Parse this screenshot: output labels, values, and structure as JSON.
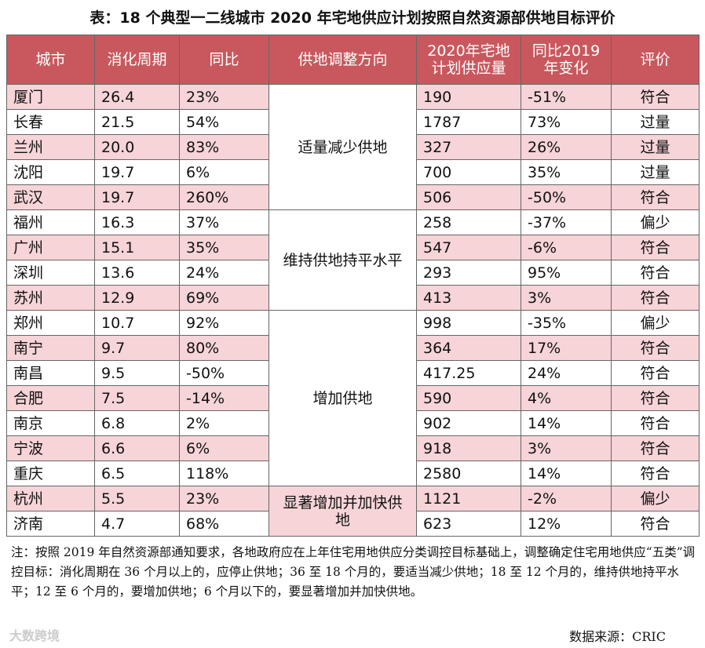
{
  "title": "表：18 个典型一二线城市 2020 年宅地供应计划按照自然资源部供地目标评价",
  "table": {
    "headers": [
      [
        "城市"
      ],
      [
        "消化周期"
      ],
      [
        "同比"
      ],
      [
        "供地调整方向"
      ],
      [
        "2020年宅地",
        "计划供应量"
      ],
      [
        "同比2019",
        "年变化"
      ],
      [
        "评价"
      ]
    ],
    "groups": [
      "适量减少供地",
      "维持供地持平水平",
      "增加供地",
      "显著增加并加快供地"
    ],
    "rows": [
      [
        "厦门",
        26.4,
        "23%",
        190,
        "-51%",
        "符合"
      ],
      [
        "长春",
        21.5,
        "54%",
        1787,
        "73%",
        "过量"
      ],
      [
        "兰州",
        "20.0",
        "83%",
        327,
        "26%",
        "过量"
      ],
      [
        "沈阳",
        19.7,
        "6%",
        700,
        "35%",
        "过量"
      ],
      [
        "武汉",
        19.7,
        "260%",
        506,
        "-50%",
        "符合"
      ],
      [
        "福州",
        16.3,
        "37%",
        258,
        "-37%",
        "偏少"
      ],
      [
        "广州",
        15.1,
        "35%",
        547,
        "-6%",
        "符合"
      ],
      [
        "深圳",
        13.6,
        "24%",
        293,
        "95%",
        "符合"
      ],
      [
        "苏州",
        12.9,
        "69%",
        413,
        "3%",
        "符合"
      ],
      [
        "郑州",
        10.7,
        "92%",
        998,
        "-35%",
        "偏少"
      ],
      [
        "南宁",
        9.7,
        "80%",
        364,
        "17%",
        "符合"
      ],
      [
        "南昌",
        9.5,
        "-50%",
        417.25,
        "24%",
        "符合"
      ],
      [
        "合肥",
        7.5,
        "-14%",
        590,
        "4%",
        "符合"
      ],
      [
        "南京",
        6.8,
        "2%",
        902,
        "14%",
        "符合"
      ],
      [
        "宁波",
        6.6,
        "6%",
        918,
        "3%",
        "符合"
      ],
      [
        "重庆",
        6.5,
        "118%",
        2580,
        "14%",
        "符合"
      ],
      [
        "杭州",
        5.5,
        "23%",
        1121,
        "-2%",
        "偏少"
      ],
      [
        "济南",
        4.7,
        "68%",
        623,
        "12%",
        "符合"
      ]
    ]
  },
  "note": "注：按照 2019 年自然资源部通知要求，各地政府应在上年住宅用地供应分类调控目标基础上，调整确定住宅用地供应“五类”调控目标：消化周期在 36 个月以上的，应停止供地；36 至 18 个月的，要适当减少供地；18 至 12 个月的，维持供地持平水平；12 至 6 个月的，要增加供地；6 个月以下的，要显著增加并加快供地。",
  "source": "数据来源：CRIC",
  "watermark": "大数跨境"
}
